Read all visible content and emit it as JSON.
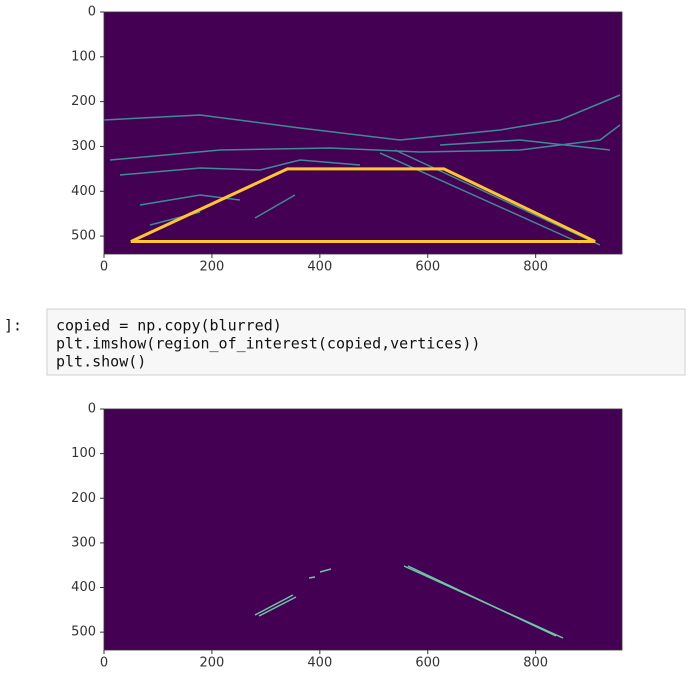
{
  "chart_data": [
    {
      "type": "imshow",
      "xlim": [
        0,
        960
      ],
      "ylim": [
        540,
        0
      ],
      "xticks": [
        0,
        200,
        400,
        600,
        800
      ],
      "yticks": [
        0,
        100,
        200,
        300,
        400,
        500
      ],
      "overlay": {
        "x": [
          50,
          340,
          630,
          910
        ],
        "y": [
          512,
          350,
          350,
          512
        ],
        "color": "#ffc72c"
      }
    },
    {
      "type": "imshow",
      "xlim": [
        0,
        960
      ],
      "ylim": [
        540,
        0
      ],
      "xticks": [
        0,
        200,
        400,
        600,
        800
      ],
      "yticks": [
        0,
        100,
        200,
        300,
        400,
        500
      ]
    }
  ],
  "code_cell": {
    "prompt": "]:",
    "lines": [
      "copied = np.copy(blurred)",
      "plt.imshow(region_of_interest(copied,vertices))",
      "plt.show()"
    ]
  }
}
